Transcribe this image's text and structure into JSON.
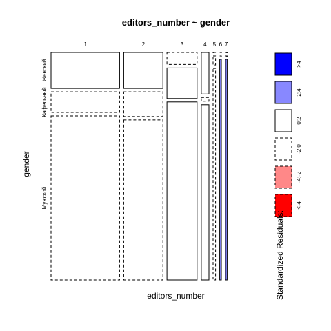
{
  "chart_data": {
    "type": "mosaic",
    "title": "editors_number ~ gender",
    "xlabel": "editors_number",
    "ylabel": "gender",
    "x_categories": [
      "1",
      "2",
      "3",
      "4",
      "5",
      "6",
      "7"
    ],
    "y_categories": [
      "Женский",
      "Кафельный",
      "Мужской"
    ],
    "column_proportions": [
      0.3779,
      0.2158,
      0.1662,
      0.0423,
      0.0137,
      0.0091,
      0.0091
    ],
    "cells": [
      [
        {
          "p": 0.1628,
          "residual": "0:2"
        },
        {
          "p": 0.0934,
          "residual": "-2:0"
        },
        {
          "p": 0.7438,
          "residual": "-2:0"
        }
      ],
      [
        {
          "p": 0.1628,
          "residual": "0:2"
        },
        {
          "p": 0.112,
          "residual": "-2:0"
        },
        {
          "p": 0.7252,
          "residual": "-2:0"
        }
      ],
      [
        {
          "p": 0.0543,
          "residual": "-2:0"
        },
        {
          "p": 0.1389,
          "residual": "0:2"
        },
        {
          "p": 0.8068,
          "residual": "0:2"
        }
      ],
      [
        {
          "p": 0.1883,
          "residual": "0:2"
        },
        {
          "p": 0.0173,
          "residual": "-2:0"
        },
        {
          "p": 0.7944,
          "residual": "0:2"
        }
      ],
      [
        {
          "p": 0.0,
          "residual": "-2:0"
        },
        {
          "p": 0.041,
          "residual": "-2:0"
        },
        {
          "p": 0.959,
          "residual": "-2:0"
        }
      ],
      [
        {
          "p": 0.0,
          "residual": "-2:0"
        },
        {
          "p": 0.0,
          "residual": "-2:0"
        },
        {
          "p": 1.0,
          "residual": "2:4"
        }
      ],
      [
        {
          "p": 0.0,
          "residual": "-2:0"
        },
        {
          "p": 0.0,
          "residual": "-2:0"
        },
        {
          "p": 1.0,
          "residual": "2:4"
        }
      ]
    ],
    "legend": {
      "title": "Standardized Residuals:",
      "items": [
        {
          "label": ">4",
          "fill": "#0000ff",
          "dashed": false
        },
        {
          "label": "2:4",
          "fill": "#8888ff",
          "dashed": false
        },
        {
          "label": "0:2",
          "fill": "#ffffff",
          "dashed": false
        },
        {
          "label": "-2:0",
          "fill": "#ffffff",
          "dashed": true
        },
        {
          "label": "-4:-2",
          "fill": "#ff8888",
          "dashed": true
        },
        {
          "label": "<-4",
          "fill": "#ff0000",
          "dashed": true
        }
      ]
    }
  }
}
